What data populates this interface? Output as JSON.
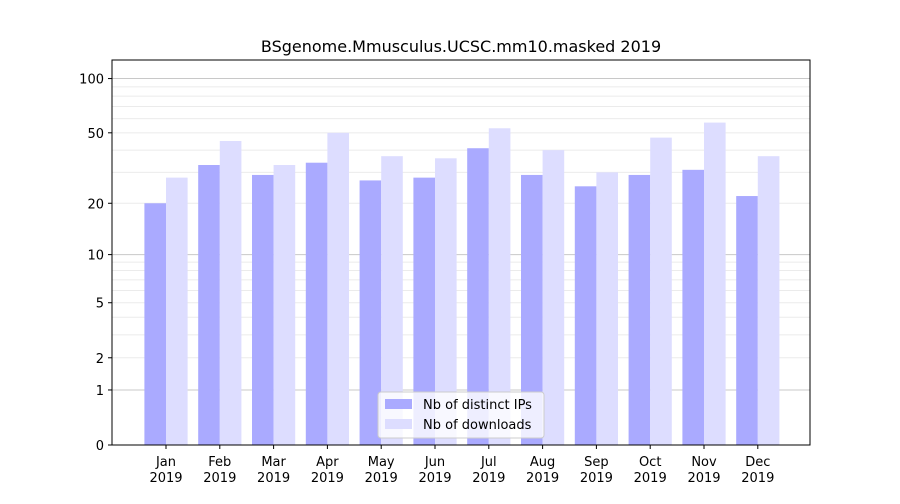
{
  "chart_data": {
    "type": "bar",
    "title": "BSgenome.Mmusculus.UCSC.mm10.masked 2019",
    "xlabel": "",
    "ylabel": "",
    "yscale": "log(1+x)",
    "ylim": [
      0,
      120
    ],
    "yticks": [
      0,
      1,
      2,
      5,
      10,
      20,
      50,
      100
    ],
    "grid": true,
    "legend_position": "bottom-center",
    "categories": [
      "Jan\n2019",
      "Feb\n2019",
      "Mar\n2019",
      "Apr\n2019",
      "May\n2019",
      "Jun\n2019",
      "Jul\n2019",
      "Aug\n2019",
      "Sep\n2019",
      "Oct\n2019",
      "Nov\n2019",
      "Dec\n2019"
    ],
    "series": [
      {
        "name": "Nb of distinct IPs",
        "color": "#aaaaff",
        "values": [
          20,
          33,
          29,
          34,
          27,
          28,
          41,
          29,
          25,
          29,
          31,
          22
        ]
      },
      {
        "name": "Nb of downloads",
        "color": "#ddddff",
        "values": [
          28,
          45,
          33,
          50,
          37,
          36,
          53,
          40,
          30,
          47,
          57,
          37
        ]
      }
    ]
  }
}
